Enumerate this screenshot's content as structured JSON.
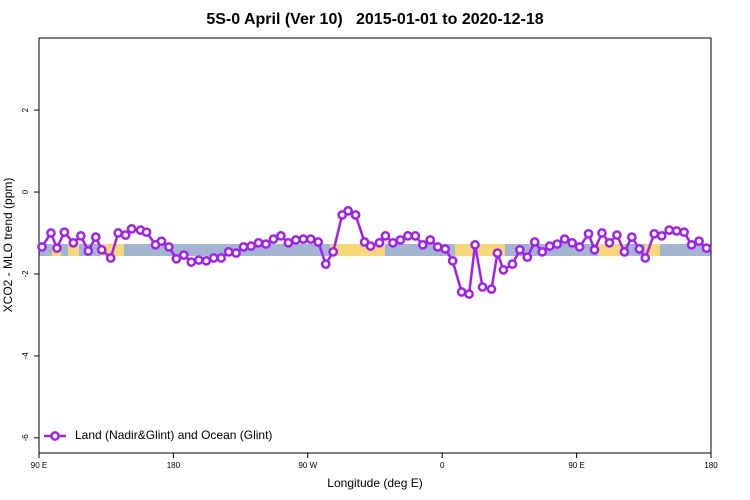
{
  "chart_data": {
    "type": "line",
    "title": "5S-0 April (Ver 10)   2015-01-01 to 2020-12-18",
    "x_label": "Longitude (deg E)",
    "y_label": "XCO2 - MLO trend (ppm)",
    "legend": "bottomleft",
    "xlim": [
      90,
      540
    ],
    "ylim": [
      -6.37,
      3.76
    ],
    "xticks": [
      {
        "value": 90,
        "label": "90 E"
      },
      180,
      {
        "value": 270,
        "label": "90 W"
      },
      {
        "value": 360,
        "label": "0"
      },
      {
        "value": 450,
        "label": "90 E"
      },
      {
        "value": 540,
        "label": "180"
      }
    ],
    "yticks": [
      -6,
      -4,
      -2,
      0,
      2
    ],
    "x": [
      92,
      98,
      102,
      107,
      113,
      118,
      123,
      128,
      132,
      138,
      143,
      148,
      152,
      158,
      162,
      168,
      172,
      177,
      182,
      187,
      192,
      197,
      202,
      207,
      212,
      217,
      222,
      227,
      232,
      237,
      242,
      247,
      252,
      257,
      262,
      267,
      272,
      277,
      282,
      287,
      293,
      297,
      302,
      308,
      312,
      318,
      322,
      327,
      332,
      337,
      342,
      347,
      352,
      357,
      362,
      367,
      373,
      378,
      382,
      387,
      393,
      397,
      401,
      407,
      412,
      417,
      422,
      427,
      432,
      437,
      442,
      447,
      452,
      458,
      462,
      467,
      472,
      477,
      482,
      487,
      492,
      496,
      502,
      507,
      512,
      517,
      522,
      527,
      532,
      537
    ],
    "series": [
      {
        "name": "Land (Nadir&Glint) and Ocean (Glint)",
        "color": "#a020f0",
        "values": [
          -1.34,
          -1.0,
          -1.37,
          -0.98,
          -1.24,
          -1.07,
          -1.44,
          -1.1,
          -1.41,
          -1.61,
          -1.0,
          -1.05,
          -0.9,
          -0.93,
          -0.98,
          -1.29,
          -1.2,
          -1.34,
          -1.63,
          -1.54,
          -1.71,
          -1.66,
          -1.68,
          -1.61,
          -1.61,
          -1.46,
          -1.49,
          -1.34,
          -1.32,
          -1.24,
          -1.27,
          -1.15,
          -1.07,
          -1.24,
          -1.17,
          -1.15,
          -1.15,
          -1.22,
          -1.76,
          -1.46,
          -0.56,
          -0.46,
          -0.56,
          -1.22,
          -1.32,
          -1.24,
          -1.07,
          -1.24,
          -1.17,
          -1.07,
          -1.07,
          -1.29,
          -1.17,
          -1.34,
          -1.39,
          -1.68,
          -2.44,
          -2.49,
          -1.29,
          -2.32,
          -2.37,
          -1.49,
          -1.9,
          -1.76,
          -1.41,
          -1.59,
          -1.22,
          -1.46,
          -1.32,
          -1.27,
          -1.15,
          -1.24,
          -1.34,
          -1.02,
          -1.41,
          -1.0,
          -1.24,
          -1.05,
          -1.46,
          -1.1,
          -1.39,
          -1.61,
          -1.02,
          -1.07,
          -0.93,
          -0.95,
          -0.98,
          -1.29,
          -1.2,
          -1.37
        ]
      }
    ]
  }
}
